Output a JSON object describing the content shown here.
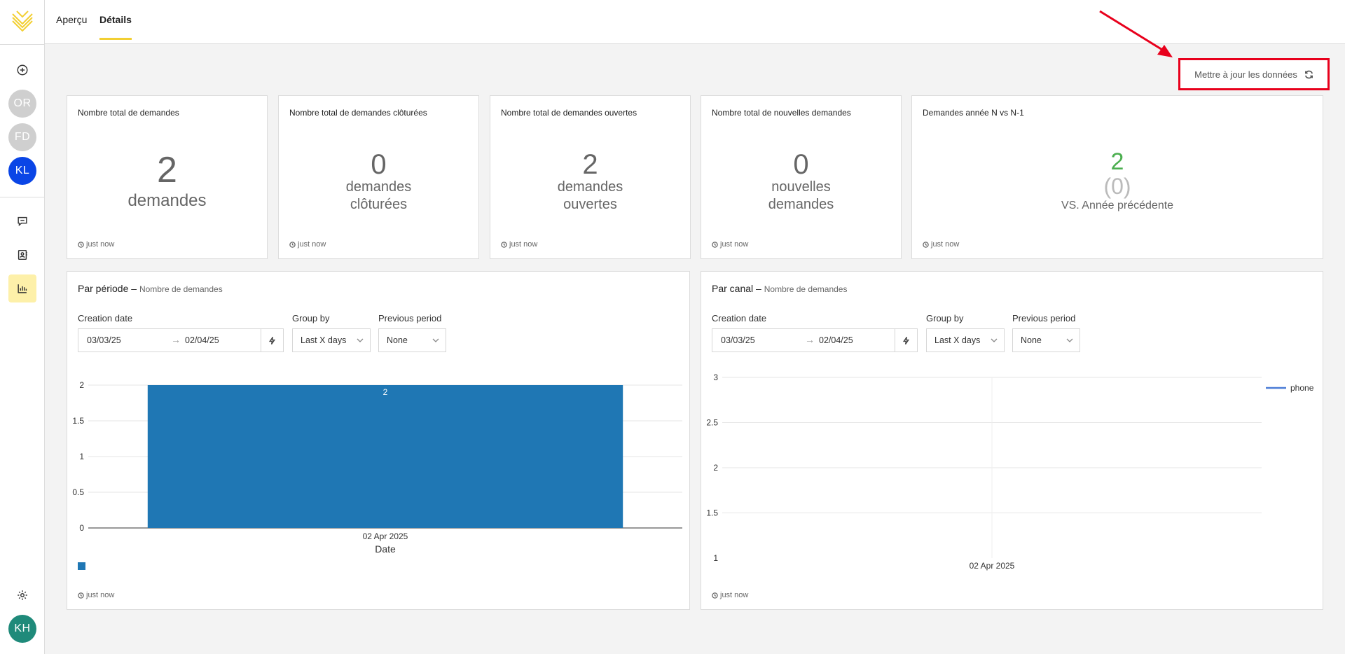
{
  "nav": {
    "tabs": [
      {
        "label": "Aperçu",
        "active": false
      },
      {
        "label": "Détails",
        "active": true
      }
    ]
  },
  "sidebar": {
    "avatars": [
      {
        "initials": "OR",
        "color": "#cfcfcf"
      },
      {
        "initials": "FD",
        "color": "#cfcfcf"
      },
      {
        "initials": "KL",
        "color": "#0a45e6"
      }
    ],
    "items": [
      {
        "name": "add-icon"
      },
      {
        "name": "chat-icon"
      },
      {
        "name": "contacts-icon"
      },
      {
        "name": "analytics-icon",
        "active": true
      }
    ],
    "settings_icon": "gear-icon",
    "user": {
      "initials": "KH",
      "color": "#1f8a7a"
    }
  },
  "toolbar": {
    "update_label": "Mettre à jour les données"
  },
  "kpis": [
    {
      "title": "Nombre total de demandes",
      "value": "2",
      "unit": "demandes",
      "updated": "just now"
    },
    {
      "title": "Nombre total de demandes clôturées",
      "value": "0",
      "unit_lines": [
        "demandes",
        "clôturées"
      ],
      "updated": "just now"
    },
    {
      "title": "Nombre total de demandes ouvertes",
      "value": "2",
      "unit_lines": [
        "demandes",
        "ouvertes"
      ],
      "updated": "just now"
    },
    {
      "title": "Nombre total de nouvelles demandes",
      "value": "0",
      "unit_lines": [
        "nouvelles",
        "demandes"
      ],
      "updated": "just now"
    },
    {
      "title": "Demandes année N vs N-1",
      "value": "2",
      "previous": "(0)",
      "caption": "VS. Année précédente",
      "value_color": "#4caf50",
      "updated": "just now"
    }
  ],
  "panels": [
    {
      "title": "Par période",
      "dash": "–",
      "subtitle": "Nombre de demandes",
      "filters": {
        "creation_label": "Creation date",
        "date_from": "03/03/25",
        "date_to": "02/04/25",
        "arrow": "→",
        "group_label": "Group by",
        "group_value": "Last X days",
        "previous_label": "Previous period",
        "previous_value": "None"
      },
      "updated": "just now"
    },
    {
      "title": "Par canal",
      "dash": "–",
      "subtitle": "Nombre de demandes",
      "filters": {
        "creation_label": "Creation date",
        "date_from": "03/03/25",
        "date_to": "02/04/25",
        "arrow": "→",
        "group_label": "Group by",
        "group_value": "Last X days",
        "previous_label": "Previous period",
        "previous_value": "None"
      },
      "updated": "just now"
    }
  ],
  "chart_data": [
    {
      "type": "bar",
      "categories": [
        "02 Apr 2025"
      ],
      "values": [
        2
      ],
      "data_labels": [
        "2"
      ],
      "xlabel": "Date",
      "ylim": [
        0,
        2
      ],
      "yticks": [
        "0",
        "0.5",
        "1",
        "1.5",
        "2"
      ],
      "bar_color": "#1f77b4",
      "legend": "bottom-left",
      "grid": true
    },
    {
      "type": "line",
      "x": [
        "02 Apr 2025"
      ],
      "series": [
        {
          "name": "phone",
          "values": [
            null
          ],
          "color": "#4a7bd6"
        }
      ],
      "ylim": [
        1,
        3
      ],
      "yticks": [
        "1",
        "1.5",
        "2",
        "2.5",
        "3"
      ],
      "legend": "top-right",
      "grid": true
    }
  ]
}
